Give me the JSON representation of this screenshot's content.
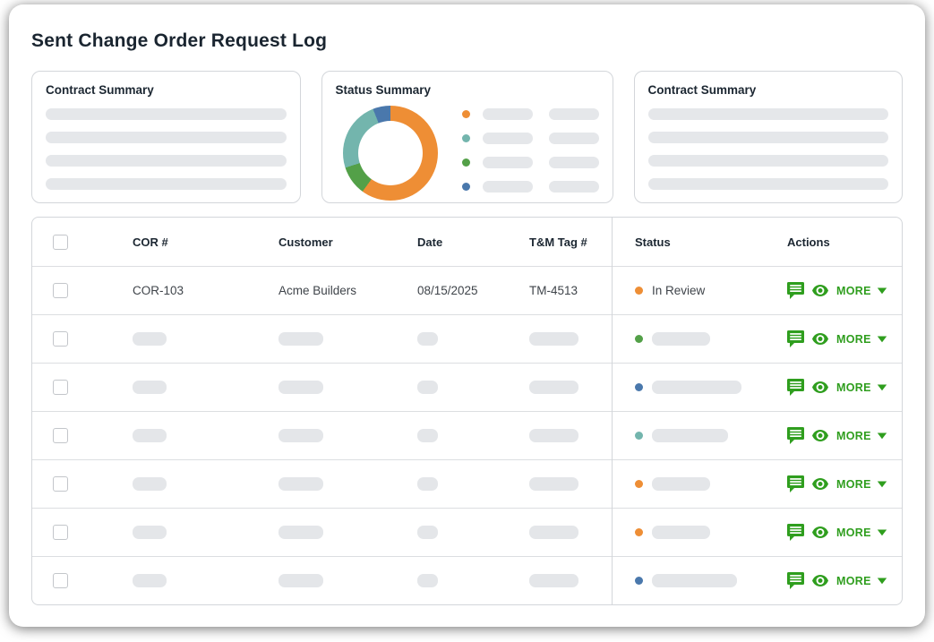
{
  "page": {
    "title": "Sent Change Order Request Log"
  },
  "colors": {
    "accent_green_actions": "#2F9E1E",
    "status_orange": "#EE8E35",
    "status_teal": "#73B5AD",
    "status_green": "#53A048",
    "status_blue": "#4A78AC",
    "skeleton_gray": "#e5e7ea",
    "border_gray": "#d3d6da"
  },
  "cards": {
    "contract_left": {
      "title": "Contract Summary",
      "skeleton_line_count": 4
    },
    "status": {
      "title": "Status Summary",
      "legend_colors": [
        "#EE8E35",
        "#73B5AD",
        "#53A048",
        "#4A78AC"
      ],
      "legend_pills_per_row": 2
    },
    "contract_right": {
      "title": "Contract Summary",
      "skeleton_line_count": 4
    }
  },
  "chart_data": {
    "type": "pie",
    "variant": "donut",
    "title": "Status Summary",
    "start_angle_deg": 0,
    "direction": "clockwise",
    "inner_radius_ratio": 0.68,
    "legend_position": "right",
    "legend_labels_visible": false,
    "segments": [
      {
        "name": "orange-segment",
        "color": "#EE8E35",
        "percent": 60
      },
      {
        "name": "green-segment",
        "color": "#53A048",
        "percent": 10
      },
      {
        "name": "teal-segment",
        "color": "#73B5AD",
        "percent": 24
      },
      {
        "name": "blue-segment",
        "color": "#4A78AC",
        "percent": 6
      }
    ]
  },
  "table": {
    "columns": [
      "COR #",
      "Customer",
      "Date",
      "T&M Tag #",
      "Status",
      "Actions"
    ],
    "actions": {
      "more_label": "MORE"
    },
    "skeleton_cell_widths": {
      "cor": 38,
      "customer": 50,
      "date": 23,
      "tm_tag": 55
    },
    "rows": [
      {
        "type": "data",
        "cor": "COR-103",
        "customer": "Acme Builders",
        "date": "08/15/2025",
        "tm_tag": "TM-4513",
        "status": {
          "label": "In Review",
          "color": "#EE8E35"
        }
      },
      {
        "type": "skeleton",
        "status": {
          "color": "#53A048",
          "pill_width": 65
        }
      },
      {
        "type": "skeleton",
        "status": {
          "color": "#4A78AC",
          "pill_width": 100
        }
      },
      {
        "type": "skeleton",
        "status": {
          "color": "#73B5AD",
          "pill_width": 85
        }
      },
      {
        "type": "skeleton",
        "status": {
          "color": "#EE8E35",
          "pill_width": 65
        }
      },
      {
        "type": "skeleton",
        "status": {
          "color": "#EE8E35",
          "pill_width": 65
        }
      },
      {
        "type": "skeleton",
        "status": {
          "color": "#4A78AC",
          "pill_width": 95
        }
      }
    ]
  }
}
